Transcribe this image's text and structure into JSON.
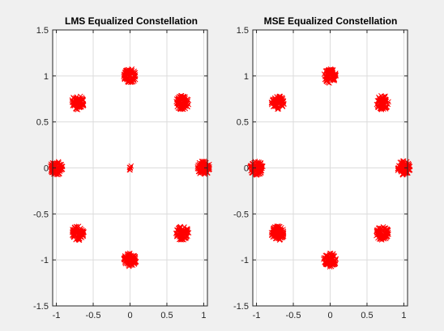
{
  "window": {
    "background": "#f0f0f0"
  },
  "chart_data": [
    {
      "type": "scatter",
      "title": "LMS Equalized Constellation",
      "xlabel": "",
      "ylabel": "",
      "xlim": [
        -1.05,
        1.05
      ],
      "ylim": [
        -1.5,
        1.5
      ],
      "xticks": [
        -1,
        -0.5,
        0,
        0.5,
        1
      ],
      "xtick_labels": [
        "-1",
        "-0.5",
        "0",
        "0.5",
        "1"
      ],
      "yticks": [
        -1.5,
        -1,
        -0.5,
        0,
        0.5,
        1,
        1.5
      ],
      "ytick_labels": [
        "-1.5",
        "-1",
        "-0.5",
        "0",
        "0.5",
        "1",
        "1.5"
      ],
      "grid": true,
      "marker": "x",
      "color": "#ff0000",
      "clusters": [
        {
          "x": 0.0,
          "y": 1.0
        },
        {
          "x": 0.71,
          "y": 0.71
        },
        {
          "x": 1.0,
          "y": 0.0
        },
        {
          "x": 0.71,
          "y": -0.71
        },
        {
          "x": 0.0,
          "y": -1.0
        },
        {
          "x": -0.71,
          "y": -0.71
        },
        {
          "x": -1.0,
          "y": 0.0
        },
        {
          "x": -0.71,
          "y": 0.71
        },
        {
          "x": 0.0,
          "y": 0.0
        }
      ]
    },
    {
      "type": "scatter",
      "title": "MSE Equalized Constellation",
      "xlabel": "",
      "ylabel": "",
      "xlim": [
        -1.05,
        1.05
      ],
      "ylim": [
        -1.5,
        1.5
      ],
      "xticks": [
        -1,
        -0.5,
        0,
        0.5,
        1
      ],
      "xtick_labels": [
        "-1",
        "-0.5",
        "0",
        "0.5",
        "1"
      ],
      "yticks": [
        -1.5,
        -1,
        -0.5,
        0,
        0.5,
        1,
        1.5
      ],
      "ytick_labels": [
        "-1.5",
        "-1",
        "-0.5",
        "0",
        "0.5",
        "1",
        "1.5"
      ],
      "grid": true,
      "marker": "x",
      "color": "#ff0000",
      "clusters": [
        {
          "x": 0.0,
          "y": 1.0
        },
        {
          "x": 0.71,
          "y": 0.71
        },
        {
          "x": 1.0,
          "y": 0.0
        },
        {
          "x": 0.71,
          "y": -0.71
        },
        {
          "x": 0.0,
          "y": -1.0
        },
        {
          "x": -0.71,
          "y": -0.71
        },
        {
          "x": -1.0,
          "y": 0.0
        },
        {
          "x": -0.71,
          "y": 0.71
        }
      ]
    }
  ]
}
